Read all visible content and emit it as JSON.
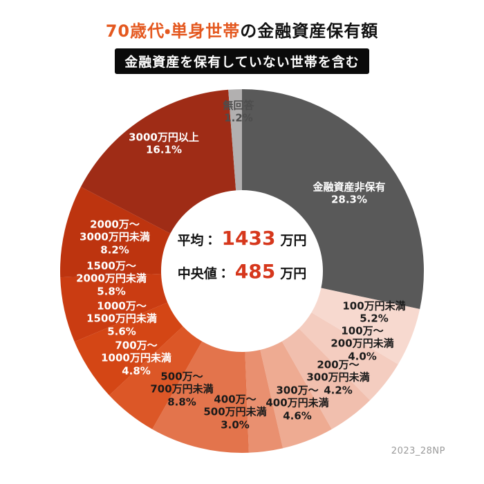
{
  "title": {
    "highlight": "70歳代・単身世帯",
    "rest": "の金融資産保有額"
  },
  "subtitle": "金融資産を保有していない世帯を含む",
  "center": {
    "avg_label": "平均：",
    "avg_value": "1433",
    "avg_unit": "万円",
    "median_label": "中央値：",
    "median_value": "485",
    "median_unit": "万円"
  },
  "footnote": "2023_28NP",
  "colors": {
    "title_accent": "#e4581f",
    "stat_value": "#d6371c",
    "subtitle_bg": "#0a0a0a",
    "nonholder_gray": "#595959",
    "no_answer_gray": "#b2b0b0"
  },
  "chart_data": {
    "type": "pie",
    "donut": true,
    "inner_radius_ratio": 0.445,
    "start_angle": "12 o'clock",
    "direction": "clockwise",
    "title": "70歳代・単身世帯の金融資産保有額",
    "subtitle": "金融資産を保有していない世帯を含む",
    "annotations": {
      "average": "平均：1433万円",
      "median": "中央値：485万円"
    },
    "categories": [
      "金融資産非保有",
      "100万円未満",
      "100万〜200万円未満",
      "200万〜300万円未満",
      "300万〜400万円未満",
      "400万〜500万円未満",
      "500万〜700万円未満",
      "700万〜1000万円未満",
      "1000万〜1500万円未満",
      "1500万〜2000万円未満",
      "2000万〜3000万円未満",
      "3000万円以上",
      "無回答"
    ],
    "values": [
      28.3,
      5.2,
      4.0,
      4.2,
      4.6,
      3.0,
      8.8,
      4.8,
      5.6,
      5.8,
      8.2,
      16.1,
      1.2
    ],
    "colors": [
      "#595959",
      "#f7d9cf",
      "#f4cdc0",
      "#f1bfae",
      "#eeab92",
      "#e99070",
      "#e3744c",
      "#dc5727",
      "#d44615",
      "#ca3c12",
      "#bd340f",
      "#9f2c16",
      "#b2b0b0"
    ],
    "labels": [
      {
        "lines": [
          "金融資産非保有",
          "28.3%"
        ]
      },
      {
        "lines": [
          "100万円未満",
          "5.2%"
        ]
      },
      {
        "lines": [
          "100万〜",
          "200万円未満",
          "4.0%"
        ]
      },
      {
        "lines": [
          "200万〜",
          "300万円未満",
          "4.2%"
        ]
      },
      {
        "lines": [
          "300万〜",
          "400万円未満",
          "4.6%"
        ]
      },
      {
        "lines": [
          "400万〜",
          "500万円未満",
          "3.0%"
        ]
      },
      {
        "lines": [
          "500万〜",
          "700万円未満",
          "8.8%"
        ]
      },
      {
        "lines": [
          "700万〜",
          "1000万円未満",
          "4.8%"
        ]
      },
      {
        "lines": [
          "1000万〜",
          "1500万円未満",
          "5.6%"
        ]
      },
      {
        "lines": [
          "1500万〜",
          "2000万円未満",
          "5.8%"
        ]
      },
      {
        "lines": [
          "2000万〜",
          "3000万円未満",
          "8.2%"
        ]
      },
      {
        "lines": [
          "3000万円以上",
          "16.1%"
        ]
      },
      {
        "lines": [
          "無回答",
          "1.2%"
        ]
      }
    ]
  }
}
